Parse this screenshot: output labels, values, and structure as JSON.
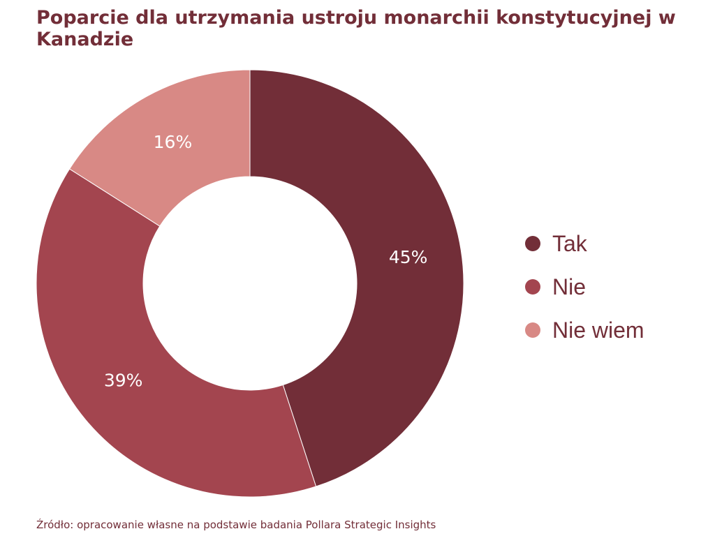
{
  "chart_data": {
    "type": "pie",
    "variant": "donut",
    "title": "Poparcie dla utrzymania ustroju monarchii konstytucyjnej w Kanadzie",
    "categories": [
      "Tak",
      "Nie",
      "Nie wiem"
    ],
    "values": [
      45,
      39,
      16
    ],
    "value_labels": [
      "45%",
      "39%",
      "16%"
    ],
    "colors": [
      "#722E38",
      "#A3454F",
      "#D88985"
    ],
    "legend_position": "right",
    "source": "Źródło: opracowanie własne na podstawie badania Pollara Strategic Insights"
  }
}
